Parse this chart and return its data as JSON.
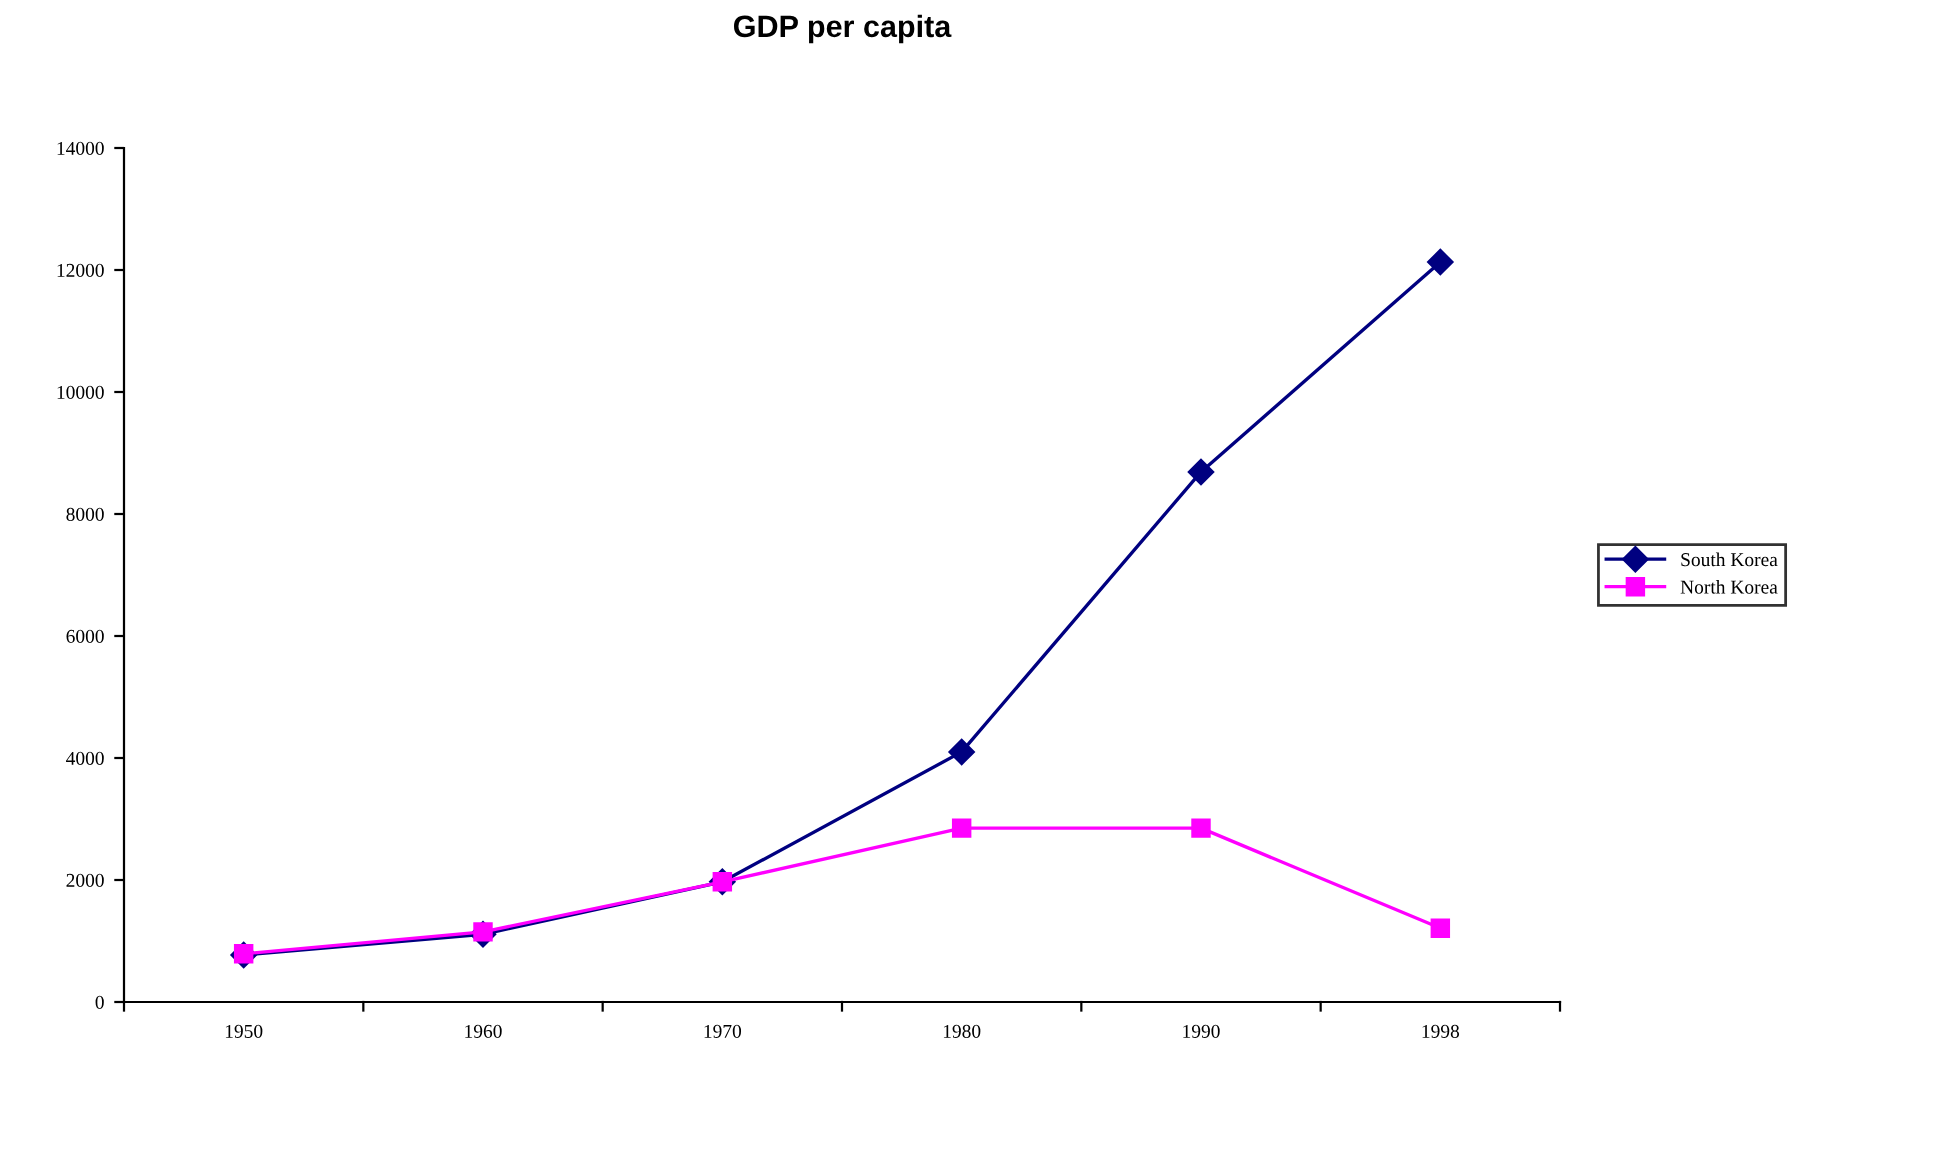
{
  "chart_data": {
    "type": "line",
    "title": "GDP per capita",
    "categories": [
      "1950",
      "1960",
      "1970",
      "1980",
      "1990",
      "1998"
    ],
    "series": [
      {
        "name": "South Korea",
        "color": "#000080",
        "marker": "diamond",
        "values": [
          770,
          1110,
          1970,
          4100,
          8690,
          12130
        ]
      },
      {
        "name": "North Korea",
        "color": "#ff00ff",
        "marker": "square",
        "values": [
          790,
          1150,
          1970,
          2850,
          2850,
          1210
        ]
      }
    ],
    "ylim": [
      0,
      14000
    ],
    "yticks": [
      0,
      2000,
      4000,
      6000,
      8000,
      10000,
      12000,
      14000
    ],
    "grid": false,
    "legend": "right",
    "line_style": "solid"
  }
}
